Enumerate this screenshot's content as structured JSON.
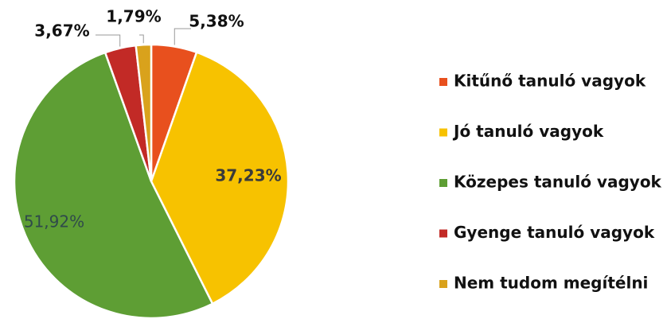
{
  "chart_data": {
    "type": "pie",
    "categories": [
      "Kitűnő tanuló vagyok",
      "Jó tanuló vagyok",
      "Közepes tanuló vagyok",
      "Gyenge tanuló vagyok",
      "Nem tudom megítélni"
    ],
    "values": [
      5.38,
      37.23,
      51.92,
      3.67,
      1.79
    ],
    "value_labels": [
      "5,38%",
      "37,23%",
      "51,92%",
      "3,67%",
      "1,79%"
    ],
    "colors": [
      "#e8501e",
      "#f7c200",
      "#5e9e34",
      "#c22a26",
      "#d9a21c"
    ],
    "legend": "right"
  }
}
